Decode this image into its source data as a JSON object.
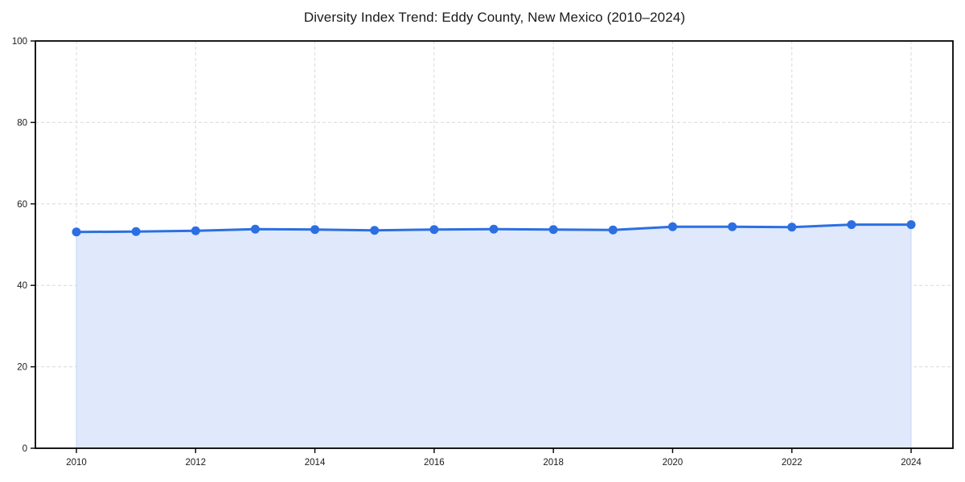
{
  "chart_data": {
    "type": "line",
    "title": "Diversity Index Trend: Eddy County, New Mexico (2010–2024)",
    "series_name": "Diversity Index",
    "x": [
      2010,
      2011,
      2012,
      2013,
      2014,
      2015,
      2016,
      2017,
      2018,
      2019,
      2020,
      2021,
      2022,
      2023,
      2024
    ],
    "values": [
      53.1,
      53.2,
      53.4,
      53.8,
      53.7,
      53.5,
      53.7,
      53.8,
      53.7,
      53.6,
      54.4,
      54.4,
      54.3,
      54.9,
      54.9
    ],
    "xlabel": "",
    "ylabel": "",
    "ylim": [
      0,
      100
    ],
    "yticks": [
      0,
      20,
      40,
      60,
      80,
      100
    ],
    "xticks": [
      2010,
      2012,
      2014,
      2016,
      2018,
      2020,
      2022,
      2024
    ],
    "grid": true,
    "grid_style": "dashed",
    "legend": "none",
    "area_fill": true,
    "marker": "circle",
    "colors": {
      "line": "#2b6fe2",
      "fill": "#dfe9fb",
      "fill_edge": "#c3d7f6",
      "grid": "#d9d9d9",
      "spine": "#000000",
      "text": "#1a1a1a",
      "background": "#ffffff"
    }
  }
}
